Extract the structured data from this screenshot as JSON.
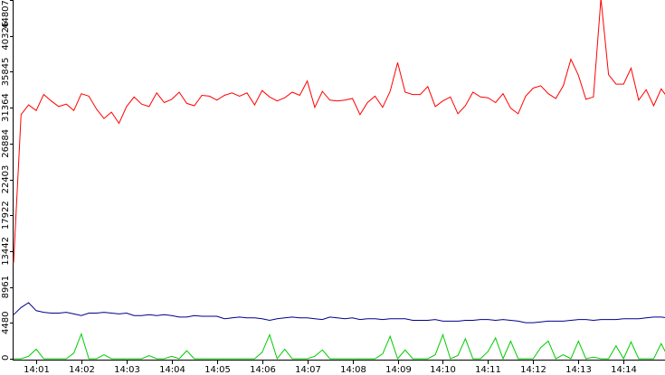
{
  "chart_data": {
    "type": "line",
    "title": "",
    "xlabel": "",
    "ylabel": "",
    "xlim": [
      "14:00:30",
      "14:14:55"
    ],
    "ylim": [
      0,
      44807
    ],
    "grid": false,
    "legend": "none",
    "x_ticks": [
      "14:01",
      "14:02",
      "14:03",
      "14:04",
      "14:05",
      "14:06",
      "14:07",
      "14:08",
      "14:09",
      "14:10",
      "14:11",
      "14:12",
      "14:13",
      "14:14"
    ],
    "y_ticks": [
      "0",
      "4480",
      "8961",
      "13442",
      "17922",
      "22403",
      "26884",
      "31364",
      "35845",
      "40326",
      "44807"
    ],
    "y_tick_values": [
      0,
      4480,
      8961,
      13442,
      17922,
      22403,
      26884,
      31364,
      35845,
      40326,
      44807
    ],
    "sample_interval_seconds": 10,
    "series": [
      {
        "color": "#ff0000",
        "start": "14:00:30",
        "values": [
          12000,
          30500,
          31700,
          31000,
          33000,
          32200,
          31500,
          31800,
          31000,
          33100,
          32800,
          31200,
          30000,
          30800,
          29400,
          31500,
          32700,
          31800,
          31500,
          33200,
          32000,
          32400,
          33300,
          31900,
          31600,
          32900,
          32800,
          32300,
          32900,
          33200,
          32800,
          33200,
          31700,
          33500,
          32700,
          32200,
          32600,
          33300,
          32900,
          34700,
          31400,
          33400,
          32300,
          32200,
          32300,
          32500,
          30500,
          32000,
          32800,
          31400,
          33400,
          37000,
          33300,
          33000,
          33000,
          34000,
          31500,
          32200,
          32700,
          30600,
          31600,
          33300,
          32700,
          32600,
          32000,
          33100,
          31300,
          30600,
          32800,
          33800,
          34100,
          33100,
          32500,
          34100,
          37400,
          35400,
          32400,
          32700,
          45000,
          35500,
          34300,
          34300,
          36300,
          32300,
          33600,
          31600,
          33700,
          32400,
          34600,
          32800,
          32400,
          30900,
          31800,
          32400,
          32600,
          32900,
          31300,
          31700,
          30900,
          32300,
          33200,
          32100,
          32100,
          31500,
          32900,
          31900,
          32200,
          30900,
          31900,
          33200,
          31500,
          29800,
          30600,
          31500,
          28600,
          31700,
          31800,
          32500,
          32300,
          33000,
          31300,
          32000,
          33200,
          32200,
          32700,
          41300,
          31700,
          33100,
          40400,
          32600,
          32700,
          32500,
          32800,
          31500,
          33400,
          32600,
          33300,
          31900,
          31500,
          31000,
          32100,
          32300,
          33200,
          32700,
          33200,
          31100,
          32200,
          32800,
          31200,
          30800,
          31800,
          32000,
          33200,
          32300,
          32200,
          33600,
          31800,
          32500,
          40600,
          31300
        ]
      },
      {
        "color": "#00008b",
        "start": "14:00:30",
        "values": [
          5500,
          6400,
          7000,
          6000,
          5800,
          5700,
          5700,
          5800,
          5600,
          5400,
          5700,
          5700,
          5800,
          5700,
          5600,
          5700,
          5400,
          5400,
          5500,
          5400,
          5500,
          5400,
          5200,
          5200,
          5400,
          5300,
          5300,
          5300,
          5000,
          5100,
          5200,
          5100,
          5100,
          5000,
          4800,
          5000,
          5100,
          5200,
          5100,
          5100,
          5000,
          4900,
          5200,
          5100,
          5000,
          5100,
          4900,
          5000,
          5000,
          4900,
          5000,
          5000,
          5000,
          4800,
          4800,
          4800,
          4900,
          4700,
          4700,
          4700,
          4800,
          4800,
          4900,
          4900,
          4800,
          4900,
          4800,
          4700,
          4500,
          4500,
          4600,
          4700,
          4700,
          4700,
          4800,
          4900,
          4900,
          4800,
          4900,
          4900,
          4900,
          5000,
          5000,
          5000,
          5100,
          5200,
          5200,
          5100,
          5100,
          5000,
          5000,
          5100,
          5000,
          5000,
          5000,
          4900,
          5000,
          4900,
          4900,
          5100,
          5100,
          5100,
          5000,
          5100,
          5000,
          5100,
          5100,
          5200,
          5400,
          5000,
          5100,
          4900,
          5000,
          5100,
          5200,
          5200,
          5200,
          5100,
          5200,
          5000,
          5000,
          5200,
          5100,
          5200,
          5100,
          5000,
          5000,
          5100,
          5300,
          5100,
          5000,
          5100,
          5000,
          5100,
          5100,
          5100,
          5100,
          5200,
          5100,
          5100,
          5300,
          4900,
          4900,
          5100,
          5100,
          5200,
          5100,
          5200,
          5100,
          5100,
          5100,
          5100,
          5100,
          5000,
          5200,
          4900,
          5100,
          5000,
          4800,
          4800
        ]
      },
      {
        "color": "#00cc00",
        "start": "14:00:30",
        "values": [
          0,
          0,
          300,
          1200,
          0,
          0,
          0,
          0,
          700,
          3100,
          0,
          0,
          500,
          0,
          0,
          0,
          0,
          0,
          400,
          0,
          0,
          300,
          0,
          1000,
          0,
          0,
          0,
          0,
          0,
          0,
          0,
          0,
          0,
          800,
          3000,
          0,
          1200,
          0,
          0,
          0,
          300,
          1100,
          0,
          0,
          0,
          0,
          0,
          0,
          0,
          600,
          2800,
          0,
          1100,
          0,
          0,
          0,
          500,
          3000,
          0,
          400,
          2500,
          0,
          0,
          900,
          2600,
          0,
          2200,
          0,
          0,
          0,
          1400,
          2200,
          0,
          500,
          0,
          2200,
          0,
          200,
          0,
          0,
          1600,
          0,
          2100,
          0,
          0,
          0,
          1900,
          0,
          0,
          400,
          2700,
          0,
          0,
          1900,
          0,
          400,
          0,
          0,
          1200,
          2400,
          0,
          400,
          0,
          2200,
          0,
          0,
          0,
          1800,
          0,
          0,
          0,
          0,
          0,
          0,
          1300,
          0,
          0,
          0,
          0,
          0,
          0,
          0,
          3000,
          0,
          0,
          0,
          3700,
          0,
          0,
          300,
          2800,
          0,
          1500,
          2600,
          1500,
          0,
          0,
          0,
          3000,
          0,
          0,
          0,
          0,
          0,
          500,
          4600,
          0,
          0,
          0,
          0,
          0,
          300,
          2100,
          0,
          0,
          2100,
          3100,
          0,
          0,
          0,
          2500,
          2000,
          0,
          0,
          2200,
          0
        ]
      }
    ]
  }
}
